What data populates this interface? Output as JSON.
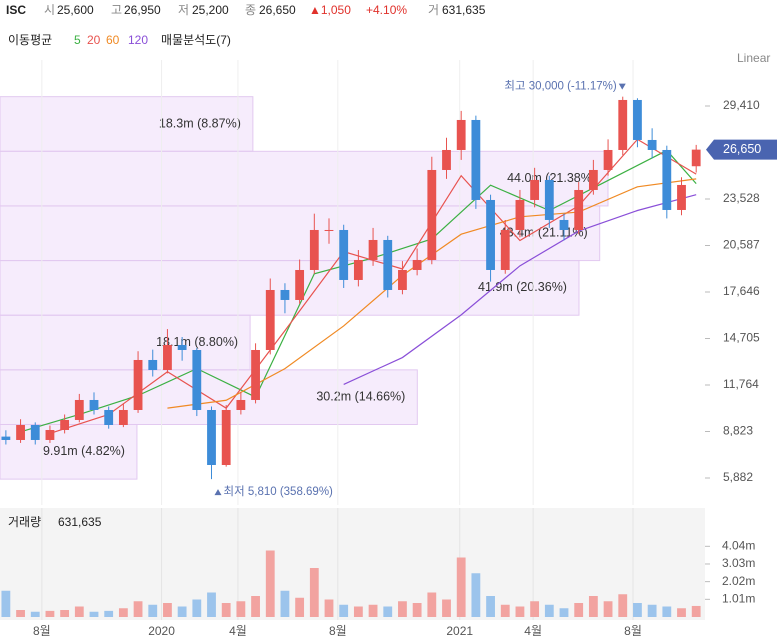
{
  "header": {
    "symbol": "ISC",
    "items": [
      {
        "label": "시",
        "value": "25,600"
      },
      {
        "label": "고",
        "value": "26,950"
      },
      {
        "label": "저",
        "value": "25,200"
      },
      {
        "label": "종",
        "value": "26,650"
      }
    ],
    "change": "▲1,050",
    "change_pct": "+4.10%",
    "volume": {
      "label": "거",
      "value": "631,635"
    }
  },
  "indicators": {
    "title": "이동평균",
    "profile_title": "매물분석도(7)"
  },
  "chart_data": [
    {
      "type": "candlestick",
      "scale_label": "Linear",
      "xlim": [
        -0.4,
        47.6
      ],
      "xticks": [
        {
          "value": 2.45,
          "label": "8월"
        },
        {
          "value": 10.6,
          "label": "2020"
        },
        {
          "value": 15.8,
          "label": "4월"
        },
        {
          "value": 22.6,
          "label": "8월"
        },
        {
          "value": 30.9,
          "label": "2021"
        },
        {
          "value": 35.9,
          "label": "4월"
        },
        {
          "value": 42.7,
          "label": "8월"
        }
      ],
      "ylim": [
        4174,
        32319
      ],
      "yticks": [
        {
          "value": 5882,
          "label": "5,882"
        },
        {
          "value": 8823,
          "label": "8,823"
        },
        {
          "value": 11764,
          "label": "11,764"
        },
        {
          "value": 14705,
          "label": "14,705"
        },
        {
          "value": 17646,
          "label": "17,646"
        },
        {
          "value": 20587,
          "label": "20,587"
        },
        {
          "value": 23528,
          "label": "23,528"
        },
        {
          "value": 29410,
          "label": "29,410"
        }
      ],
      "grid": true,
      "up_color": "#e8534f",
      "down_color": "#3d8cd8",
      "open": [
        8500,
        8286,
        9234,
        8286,
        8918,
        9551,
        10816,
        10183,
        9234,
        10183,
        13346,
        12713,
        14294,
        13978,
        10183,
        6704,
        10183,
        10816,
        13978,
        17773,
        17141,
        19038,
        21568,
        21568,
        18406,
        19671,
        20936,
        17773,
        19038,
        19671,
        25363,
        26628,
        28526,
        23466,
        19038,
        21568,
        23466,
        24731,
        22201,
        21568,
        24098,
        25363,
        26628,
        29791,
        27261,
        26628,
        22833,
        25600
      ],
      "high": [
        8900,
        9600,
        9400,
        9200,
        9900,
        11200,
        11300,
        10400,
        10600,
        13900,
        14000,
        15300,
        14800,
        14100,
        10400,
        10500,
        11300,
        14400,
        18500,
        18200,
        19700,
        22600,
        22300,
        21900,
        20300,
        21700,
        21200,
        19600,
        20400,
        26200,
        27400,
        29100,
        28800,
        23800,
        22200,
        24100,
        25500,
        25000,
        22600,
        24600,
        26000,
        27300,
        30000,
        29900,
        28000,
        26900,
        24900,
        26950
      ],
      "low": [
        8000,
        8100,
        8000,
        8100,
        8700,
        9400,
        9900,
        9000,
        9100,
        10000,
        12300,
        12500,
        13300,
        9800,
        5810,
        6600,
        9900,
        10600,
        13700,
        16300,
        16900,
        18800,
        20700,
        17900,
        18000,
        19300,
        17300,
        17500,
        18700,
        19400,
        24800,
        26000,
        22900,
        18300,
        18800,
        21100,
        23000,
        21700,
        20900,
        21300,
        23800,
        25000,
        26300,
        26800,
        26100,
        22300,
        22500,
        25200
      ],
      "close": [
        8286,
        9234,
        8286,
        8918,
        9551,
        10816,
        10183,
        9234,
        10183,
        13346,
        12713,
        14294,
        13978,
        10183,
        6704,
        10183,
        10816,
        13978,
        17773,
        17141,
        19038,
        21568,
        21568,
        18406,
        19671,
        20936,
        17773,
        19038,
        19671,
        25363,
        26628,
        28526,
        23466,
        19038,
        21568,
        23466,
        24731,
        22201,
        21568,
        24098,
        25363,
        26628,
        29791,
        27261,
        26628,
        22833,
        24415,
        26650
      ],
      "moving_averages": [
        {
          "name": "5",
          "color": "#3cb043",
          "x": [
            1,
            5,
            9,
            13,
            17,
            21,
            25,
            29,
            33,
            37,
            41,
            45,
            47
          ],
          "values": [
            8800,
            9900,
            11100,
            12800,
            11000,
            18800,
            19800,
            21000,
            24400,
            22800,
            24700,
            26600,
            24500
          ]
        },
        {
          "name": "20",
          "color": "#e8534f",
          "x": [
            3,
            7,
            11,
            15,
            19,
            23,
            27,
            31,
            35,
            39,
            43,
            47
          ],
          "values": [
            8700,
            9900,
            12600,
            10300,
            15200,
            20200,
            19100,
            25000,
            20900,
            23100,
            27300,
            25100
          ]
        },
        {
          "name": "60",
          "color": "#f08a24",
          "x": [
            11,
            15,
            19,
            23,
            27,
            31,
            35,
            39,
            43,
            47
          ],
          "values": [
            10300,
            10800,
            12800,
            15500,
            18700,
            21300,
            22400,
            22700,
            24300,
            24800
          ]
        },
        {
          "name": "120",
          "color": "#8a4fd8",
          "x": [
            23,
            27,
            31,
            35,
            39,
            43,
            47
          ],
          "values": [
            11800,
            13500,
            16200,
            19300,
            21500,
            22800,
            23800
          ]
        }
      ],
      "volume_profile": {
        "edges": [
          5810,
          9266,
          12721,
          16177,
          19633,
          23089,
          26544,
          30000
        ],
        "values": [
          9910000,
          30200000,
          18100000,
          41900000,
          43400000,
          44000000,
          18300000
        ],
        "value_labels": [
          "9.91m (4.82%)",
          "30.2m (14.66%)",
          "18.1m (8.80%)",
          "41.9m (20.36%)",
          "43.4m (21.11%)",
          "44.0m (21.38%)",
          "18.3m (8.87%)"
        ]
      },
      "annotations": [
        {
          "text": "최고 30,000 (-11.17%)",
          "value": 30000
        },
        {
          "text": "최저 5,810 (358.69%)",
          "value": 5810
        }
      ],
      "last_price": {
        "value": 26650,
        "label": "26,650"
      }
    },
    {
      "type": "bar",
      "title": "거래량",
      "ylim": [
        0,
        6000000
      ],
      "yticks": [
        {
          "value": 1010000,
          "label": "1.01m"
        },
        {
          "value": 2020000,
          "label": "2.02m"
        },
        {
          "value": 3030000,
          "label": "3.03m"
        },
        {
          "value": 4040000,
          "label": "4.04m"
        }
      ],
      "values": [
        1500000,
        400000,
        300000,
        350000,
        400000,
        600000,
        300000,
        350000,
        500000,
        900000,
        700000,
        800000,
        600000,
        1000000,
        1400000,
        800000,
        900000,
        1200000,
        3800000,
        1500000,
        1100000,
        2800000,
        1000000,
        700000,
        600000,
        700000,
        600000,
        900000,
        800000,
        1400000,
        1000000,
        3400000,
        2500000,
        1200000,
        700000,
        600000,
        900000,
        700000,
        500000,
        800000,
        1200000,
        900000,
        1300000,
        800000,
        700000,
        600000,
        500000,
        631635
      ]
    }
  ]
}
